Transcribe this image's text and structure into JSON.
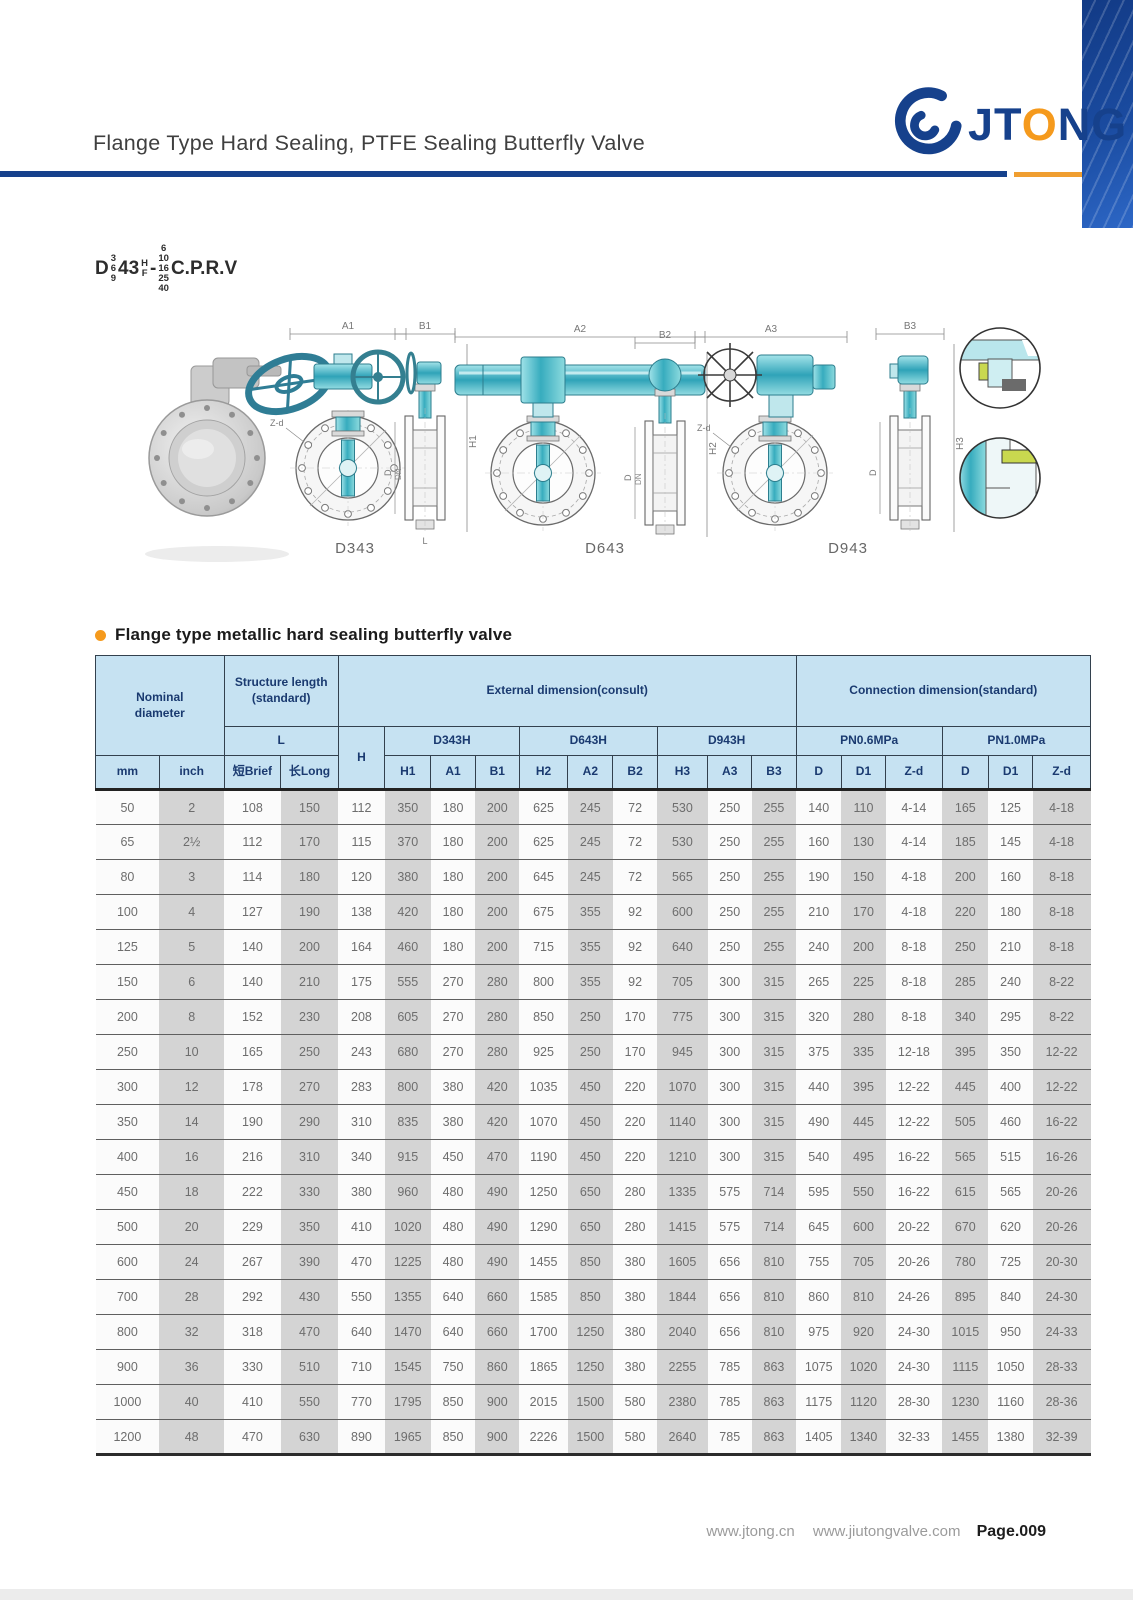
{
  "header": {
    "title": "Flange Type Hard Sealing, PTFE Sealing Butterfly Valve",
    "logo_text_left": "JT",
    "logo_o": "O",
    "logo_text_right": "NG"
  },
  "model_code": {
    "prefix": "D",
    "stack1": [
      "3",
      "6",
      "9"
    ],
    "body": "43",
    "stack2": [
      "H",
      "F"
    ],
    "dash": "-",
    "stack3": [
      "6",
      "10",
      "16",
      "25",
      "40"
    ],
    "suffix": "C.P.R.V"
  },
  "drawings": {
    "labels": [
      "D343",
      "D643",
      "D943"
    ],
    "dims": {
      "a1": "A1",
      "b1": "B1",
      "h1": "H1",
      "a2": "A2",
      "b2": "B2",
      "h2": "H2",
      "a3": "A3",
      "b3": "B3",
      "h3": "H3",
      "dn": "DN",
      "d": "D",
      "zd": "Z-d",
      "l": "L"
    }
  },
  "section": {
    "title": "Flange type metallic hard sealing butterfly valve"
  },
  "table": {
    "groups": {
      "nominal_l1": "Nominal",
      "nominal_l2": "diameter",
      "structure_l1": "Structure length",
      "structure_l2": "(standard)",
      "external": "External dimension(consult)",
      "connection": "Connection dimension(standard)",
      "l": "L",
      "h": "H",
      "d343h": "D343H",
      "d643h": "D643H",
      "d943h": "D943H",
      "pn06": "PN0.6MPa",
      "pn10": "PN1.0MPa"
    },
    "col_headers": [
      "mm",
      "inch",
      "短Brief",
      "长Long",
      "H1",
      "A1",
      "B1",
      "H2",
      "A2",
      "B2",
      "H3",
      "A3",
      "B3",
      "D",
      "D1",
      "Z-d",
      "D",
      "D1",
      "Z-d"
    ],
    "rows": [
      [
        "50",
        "2",
        "108",
        "150",
        "112",
        "350",
        "180",
        "200",
        "625",
        "245",
        "72",
        "530",
        "250",
        "255",
        "140",
        "110",
        "4-14",
        "165",
        "125",
        "4-18"
      ],
      [
        "65",
        "2½",
        "112",
        "170",
        "115",
        "370",
        "180",
        "200",
        "625",
        "245",
        "72",
        "530",
        "250",
        "255",
        "160",
        "130",
        "4-14",
        "185",
        "145",
        "4-18"
      ],
      [
        "80",
        "3",
        "114",
        "180",
        "120",
        "380",
        "180",
        "200",
        "645",
        "245",
        "72",
        "565",
        "250",
        "255",
        "190",
        "150",
        "4-18",
        "200",
        "160",
        "8-18"
      ],
      [
        "100",
        "4",
        "127",
        "190",
        "138",
        "420",
        "180",
        "200",
        "675",
        "355",
        "92",
        "600",
        "250",
        "255",
        "210",
        "170",
        "4-18",
        "220",
        "180",
        "8-18"
      ],
      [
        "125",
        "5",
        "140",
        "200",
        "164",
        "460",
        "180",
        "200",
        "715",
        "355",
        "92",
        "640",
        "250",
        "255",
        "240",
        "200",
        "8-18",
        "250",
        "210",
        "8-18"
      ],
      [
        "150",
        "6",
        "140",
        "210",
        "175",
        "555",
        "270",
        "280",
        "800",
        "355",
        "92",
        "705",
        "300",
        "315",
        "265",
        "225",
        "8-18",
        "285",
        "240",
        "8-22"
      ],
      [
        "200",
        "8",
        "152",
        "230",
        "208",
        "605",
        "270",
        "280",
        "850",
        "250",
        "170",
        "775",
        "300",
        "315",
        "320",
        "280",
        "8-18",
        "340",
        "295",
        "8-22"
      ],
      [
        "250",
        "10",
        "165",
        "250",
        "243",
        "680",
        "270",
        "280",
        "925",
        "250",
        "170",
        "945",
        "300",
        "315",
        "375",
        "335",
        "12-18",
        "395",
        "350",
        "12-22"
      ],
      [
        "300",
        "12",
        "178",
        "270",
        "283",
        "800",
        "380",
        "420",
        "1035",
        "450",
        "220",
        "1070",
        "300",
        "315",
        "440",
        "395",
        "12-22",
        "445",
        "400",
        "12-22"
      ],
      [
        "350",
        "14",
        "190",
        "290",
        "310",
        "835",
        "380",
        "420",
        "1070",
        "450",
        "220",
        "1140",
        "300",
        "315",
        "490",
        "445",
        "12-22",
        "505",
        "460",
        "16-22"
      ],
      [
        "400",
        "16",
        "216",
        "310",
        "340",
        "915",
        "450",
        "470",
        "1190",
        "450",
        "220",
        "1210",
        "300",
        "315",
        "540",
        "495",
        "16-22",
        "565",
        "515",
        "16-26"
      ],
      [
        "450",
        "18",
        "222",
        "330",
        "380",
        "960",
        "480",
        "490",
        "1250",
        "650",
        "280",
        "1335",
        "575",
        "714",
        "595",
        "550",
        "16-22",
        "615",
        "565",
        "20-26"
      ],
      [
        "500",
        "20",
        "229",
        "350",
        "410",
        "1020",
        "480",
        "490",
        "1290",
        "650",
        "280",
        "1415",
        "575",
        "714",
        "645",
        "600",
        "20-22",
        "670",
        "620",
        "20-26"
      ],
      [
        "600",
        "24",
        "267",
        "390",
        "470",
        "1225",
        "480",
        "490",
        "1455",
        "850",
        "380",
        "1605",
        "656",
        "810",
        "755",
        "705",
        "20-26",
        "780",
        "725",
        "20-30"
      ],
      [
        "700",
        "28",
        "292",
        "430",
        "550",
        "1355",
        "640",
        "660",
        "1585",
        "850",
        "380",
        "1844",
        "656",
        "810",
        "860",
        "810",
        "24-26",
        "895",
        "840",
        "24-30"
      ],
      [
        "800",
        "32",
        "318",
        "470",
        "640",
        "1470",
        "640",
        "660",
        "1700",
        "1250",
        "380",
        "2040",
        "656",
        "810",
        "975",
        "920",
        "24-30",
        "1015",
        "950",
        "24-33"
      ],
      [
        "900",
        "36",
        "330",
        "510",
        "710",
        "1545",
        "750",
        "860",
        "1865",
        "1250",
        "380",
        "2255",
        "785",
        "863",
        "1075",
        "1020",
        "24-30",
        "1115",
        "1050",
        "28-33"
      ],
      [
        "1000",
        "40",
        "410",
        "550",
        "770",
        "1795",
        "850",
        "900",
        "2015",
        "1500",
        "580",
        "2380",
        "785",
        "863",
        "1175",
        "1120",
        "28-30",
        "1230",
        "1160",
        "28-36"
      ],
      [
        "1200",
        "48",
        "470",
        "630",
        "890",
        "1965",
        "850",
        "900",
        "2226",
        "1500",
        "580",
        "2640",
        "785",
        "863",
        "1405",
        "1340",
        "32-33",
        "1455",
        "1380",
        "32-39"
      ]
    ]
  },
  "footer": {
    "url1": "www.jtong.cn",
    "url2": "www.jiutongvalve.com",
    "page": "Page.009"
  },
  "colors": {
    "navy": "#16418c",
    "orange": "#f59a1d",
    "header_blue": "#c6e2f2",
    "teal": "#37acbe"
  }
}
